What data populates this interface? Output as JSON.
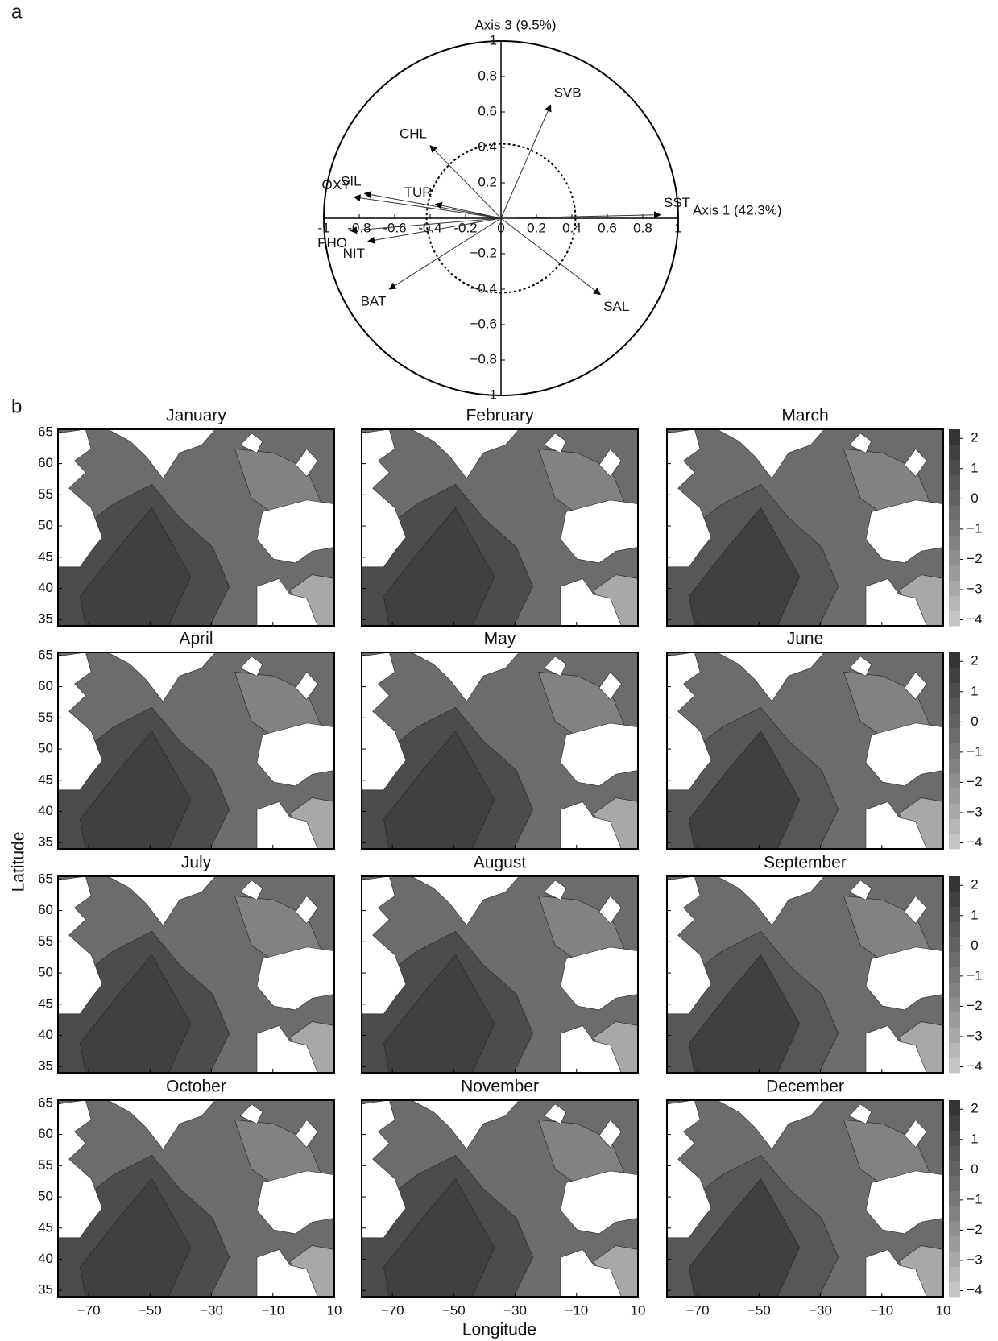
{
  "chart_data": [
    {
      "type": "vector",
      "panel_label": "a",
      "xlabel": "Axis 1 (42.3%)",
      "ylabel": "Axis 3 (9.5%)",
      "xlim": [
        -1,
        1
      ],
      "ylim": [
        -1,
        1
      ],
      "xticks": [
        {
          "value": -1,
          "label": "-1"
        },
        {
          "value": -0.8,
          "label": "-0.8"
        },
        {
          "value": -0.6,
          "label": "-0.6"
        },
        {
          "value": -0.4,
          "label": "-0.4"
        },
        {
          "value": -0.2,
          "label": "-0.2"
        },
        0,
        0.2,
        0.4,
        0.6,
        0.8,
        1
      ],
      "yticks": [
        {
          "value": -1,
          "label": "−1"
        },
        {
          "value": -0.8,
          "label": "−0.8"
        },
        {
          "value": -0.6,
          "label": "−0.6"
        },
        {
          "value": -0.4,
          "label": "−0.4"
        },
        {
          "value": -0.2,
          "label": "−0.2"
        },
        0,
        0.2,
        0.4,
        0.6,
        0.8,
        1
      ],
      "inner_circle_radius": 0.42,
      "vectors": [
        {
          "name": "SVB",
          "x": 0.28,
          "y": 0.64
        },
        {
          "name": "CHL",
          "x": -0.4,
          "y": 0.41
        },
        {
          "name": "SIL",
          "x": -0.77,
          "y": 0.14
        },
        {
          "name": "OXY",
          "x": -0.83,
          "y": 0.12
        },
        {
          "name": "TUR",
          "x": -0.37,
          "y": 0.08
        },
        {
          "name": "SST",
          "x": 0.9,
          "y": 0.02
        },
        {
          "name": "PHO",
          "x": -0.85,
          "y": -0.07
        },
        {
          "name": "NIT",
          "x": -0.75,
          "y": -0.13
        },
        {
          "name": "BAT",
          "x": -0.63,
          "y": -0.4
        },
        {
          "name": "SAL",
          "x": 0.56,
          "y": -0.43
        }
      ]
    },
    {
      "type": "contour",
      "panel_label": "b",
      "titles": [
        "January",
        "February",
        "March",
        "April",
        "May",
        "June",
        "July",
        "August",
        "September",
        "October",
        "November",
        "December"
      ],
      "xlabel": "Longitude",
      "ylabel": "Latitude",
      "xlim": [
        -80,
        10
      ],
      "ylim": [
        34,
        65.5
      ],
      "xticks": [
        {
          "value": -70,
          "label": "−70"
        },
        {
          "value": -50,
          "label": "−50"
        },
        {
          "value": -30,
          "label": "−30"
        },
        {
          "value": -10,
          "label": "−10"
        },
        10
      ],
      "yticks": [
        35,
        40,
        45,
        50,
        55,
        60,
        65
      ],
      "colorbar": {
        "ylim": [
          -4.2,
          2.3
        ],
        "yticks": [
          2,
          1,
          0,
          {
            "value": -1,
            "label": "−1"
          },
          {
            "value": -2,
            "label": "−2"
          },
          {
            "value": -3,
            "label": "−3"
          },
          {
            "value": -4,
            "label": "−4"
          }
        ],
        "colors": [
          "#c4c4c4",
          "#b6b6b6",
          "#a8a8a8",
          "#9a9a9a",
          "#8e8e8e",
          "#828282",
          "#777777",
          "#6c6c6c",
          "#616161",
          "#575757",
          "#4c4c4c",
          "#414141",
          "#333333"
        ]
      }
    }
  ]
}
